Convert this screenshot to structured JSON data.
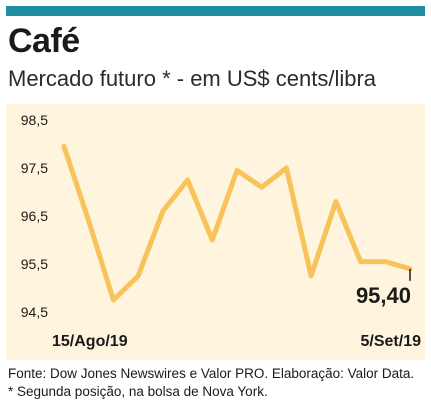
{
  "title": "Café",
  "subtitle": "Mercado futuro * - em US$ cents/libra",
  "source": "Fonte: Dow Jones Newswires e Valor PRO. Elaboração: Valor Data. * Segunda posição, na bolsa de Nova York.",
  "colors": {
    "accent_bar": "#1f8fa3",
    "line": "#f7c35a",
    "panel": "#fff4de"
  },
  "chart_data": {
    "type": "line",
    "title": "Café",
    "subtitle": "Mercado futuro * - em US$ cents/libra",
    "x_labels": [
      "15/Ago/19",
      "5/Set/19"
    ],
    "y_ticks": [
      "98,5",
      "97,5",
      "96,5",
      "95,5",
      "94,5"
    ],
    "y_tick_values": [
      98.5,
      97.5,
      96.5,
      95.5,
      94.5
    ],
    "ylim": [
      94.5,
      98.5
    ],
    "grid": false,
    "series": [
      {
        "values": [
          97.95,
          96.4,
          94.75,
          95.25,
          96.6,
          97.25,
          96.0,
          97.45,
          97.1,
          97.5,
          95.25,
          96.8,
          95.55,
          95.55,
          95.4
        ]
      }
    ],
    "last_value_label": "95,40"
  }
}
